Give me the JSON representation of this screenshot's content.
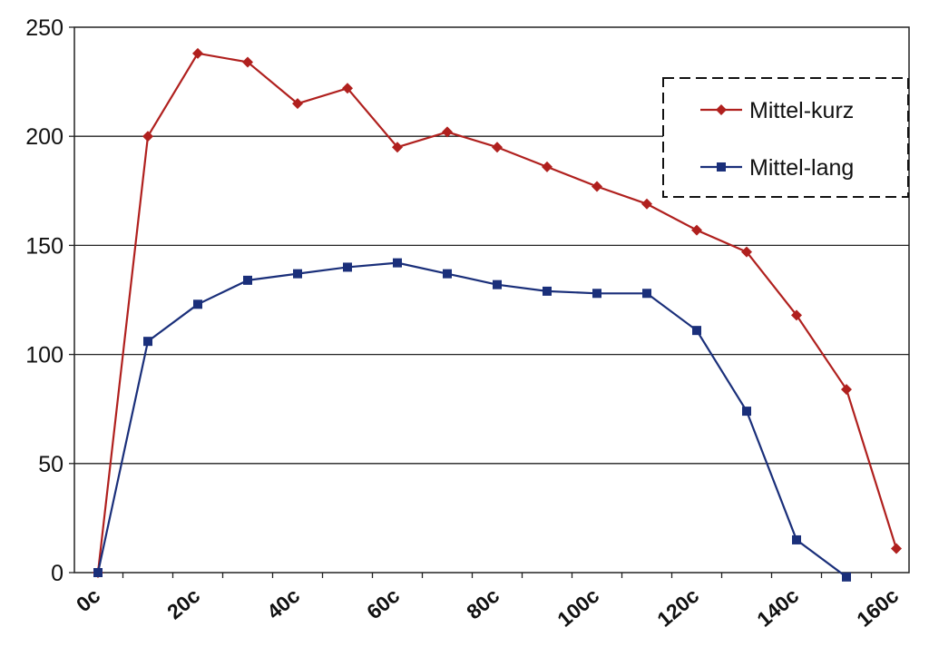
{
  "chart_data": {
    "type": "line",
    "title": "",
    "xlabel": "",
    "ylabel": "",
    "x_tick_labels": [
      "0c",
      "20c",
      "40c",
      "60c",
      "80c",
      "100c",
      "120c",
      "140c",
      "160c"
    ],
    "y_tick_labels": [
      "0",
      "50",
      "100",
      "150",
      "200",
      "250"
    ],
    "xlim": [
      0,
      165
    ],
    "ylim": [
      0,
      250
    ],
    "grid": "horizontal",
    "legend_position": "top-right",
    "series": [
      {
        "name": "Mittel-kurz",
        "color": "#b0201e",
        "marker": "diamond",
        "x": [
          0,
          10,
          20,
          30,
          40,
          50,
          60,
          70,
          80,
          90,
          100,
          110,
          120,
          130,
          140,
          150,
          160
        ],
        "values": [
          0,
          200,
          238,
          234,
          215,
          222,
          195,
          202,
          195,
          186,
          177,
          169,
          157,
          147,
          118,
          84,
          11
        ]
      },
      {
        "name": "Mittel-lang",
        "color": "#1a2f7a",
        "marker": "square",
        "x": [
          0,
          10,
          20,
          30,
          40,
          50,
          60,
          70,
          80,
          90,
          100,
          110,
          120,
          130,
          140,
          150
        ],
        "values": [
          0,
          106,
          123,
          134,
          137,
          140,
          142,
          137,
          132,
          129,
          128,
          128,
          111,
          74,
          15,
          -2
        ]
      }
    ]
  }
}
